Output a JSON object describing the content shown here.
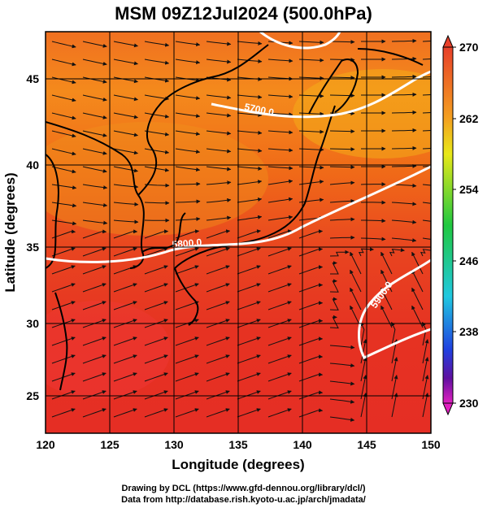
{
  "title": "MSM 09Z12Jul2024 (500.0hPa)",
  "xaxis": {
    "label": "Longitude (degrees)",
    "ticks": [
      "120",
      "125",
      "130",
      "135",
      "140",
      "145",
      "150"
    ],
    "range": [
      120,
      150
    ]
  },
  "yaxis": {
    "label": "Latitude  (degrees)",
    "ticks": [
      "25",
      "30",
      "35",
      "40",
      "45"
    ],
    "range": [
      22.5,
      47.5
    ]
  },
  "colorbar": {
    "ticks": [
      "270",
      "262",
      "254",
      "246",
      "238",
      "230"
    ],
    "range": [
      230,
      270
    ]
  },
  "contours": [
    {
      "label": "5700.0"
    },
    {
      "label": "5800.0"
    },
    {
      "label": "5900.0"
    }
  ],
  "credits": {
    "line1": "Drawing by DCL (https://www.gfd-dennou.org/library/dcl/)",
    "line2": "Data from http://database.rish.kyoto-u.ac.jp/arch/jmadata/"
  }
}
